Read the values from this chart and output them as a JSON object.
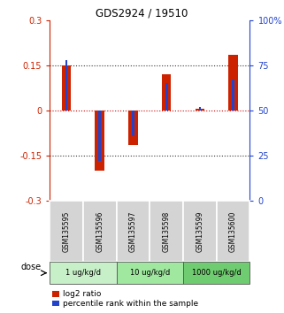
{
  "title": "GDS2924 / 19510",
  "samples": [
    "GSM135595",
    "GSM135596",
    "GSM135597",
    "GSM135598",
    "GSM135599",
    "GSM135600"
  ],
  "log2_ratio": [
    0.15,
    -0.2,
    -0.115,
    0.12,
    0.005,
    0.185
  ],
  "percentile_rank": [
    78,
    22,
    36,
    65,
    52,
    67
  ],
  "dose_groups": [
    {
      "label": "1 ug/kg/d",
      "samples": [
        0,
        1
      ],
      "color": "#c8f0c8"
    },
    {
      "label": "10 ug/kg/d",
      "samples": [
        2,
        3
      ],
      "color": "#a0e8a0"
    },
    {
      "label": "1000 ug/kg/d",
      "samples": [
        4,
        5
      ],
      "color": "#70cc70"
    }
  ],
  "ylim": [
    -0.3,
    0.3
  ],
  "yticks_left": [
    -0.3,
    -0.15,
    0,
    0.15,
    0.3
  ],
  "yticks_right": [
    0,
    25,
    50,
    75,
    100
  ],
  "red_color": "#cc2200",
  "blue_color": "#2244cc",
  "legend_red": "log2 ratio",
  "legend_blue": "percentile rank within the sample",
  "dose_label": "dose",
  "background_color": "#ffffff"
}
